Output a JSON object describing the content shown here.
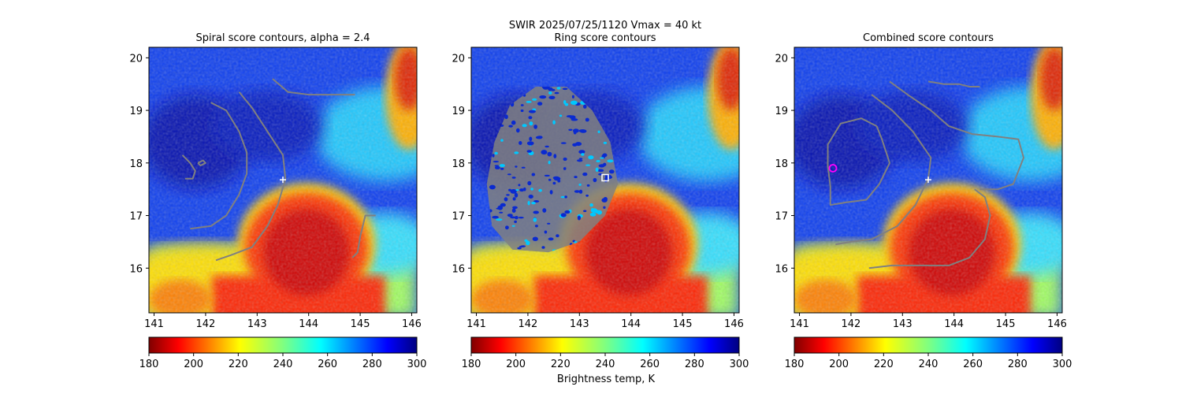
{
  "suptitle": "SWIR  2025/07/25/1120    Vmax = 40 kt",
  "colorbar_label": "Brightness temp, K",
  "colors": {
    "contour": "#808080",
    "marker_white": "#ffffff",
    "marker_magenta": "#ff00ff"
  },
  "chart_data": [
    {
      "type": "heatmap",
      "title": "Spiral score contours, alpha =  2.4",
      "xlim": [
        140.9,
        146.1
      ],
      "ylim": [
        15.15,
        20.2
      ],
      "xticks": [
        "141",
        "142",
        "143",
        "144",
        "145",
        "146"
      ],
      "yticks": [
        "16",
        "17",
        "18",
        "19",
        "20"
      ],
      "colorbar": {
        "cmap": "jet_r",
        "range": [
          180,
          300
        ],
        "ticks": [
          "180",
          "200",
          "220",
          "240",
          "260",
          "280",
          "300"
        ]
      },
      "markers": [
        {
          "symbol": "plus",
          "x": 143.5,
          "y": 17.68,
          "color": "#ffffff"
        }
      ],
      "contours": [
        [
          [
            141.6,
            17.7
          ],
          [
            141.75,
            17.7
          ],
          [
            141.8,
            17.85
          ],
          [
            141.7,
            18.0
          ],
          [
            141.55,
            18.15
          ]
        ],
        [
          [
            141.85,
            18.0
          ],
          [
            141.95,
            18.05
          ],
          [
            142.0,
            18.0
          ],
          [
            141.9,
            17.95
          ],
          [
            141.85,
            18.0
          ]
        ],
        [
          [
            142.1,
            19.15
          ],
          [
            142.4,
            19.0
          ],
          [
            142.65,
            18.6
          ],
          [
            142.8,
            18.2
          ],
          [
            142.8,
            17.8
          ],
          [
            142.65,
            17.4
          ],
          [
            142.4,
            17.0
          ],
          [
            142.1,
            16.8
          ],
          [
            141.7,
            16.75
          ]
        ],
        [
          [
            142.65,
            19.35
          ],
          [
            142.9,
            19.05
          ],
          [
            143.2,
            18.6
          ],
          [
            143.5,
            18.15
          ],
          [
            143.55,
            17.7
          ],
          [
            143.4,
            17.2
          ],
          [
            143.2,
            16.8
          ],
          [
            142.9,
            16.4
          ],
          [
            142.5,
            16.25
          ],
          [
            142.2,
            16.15
          ]
        ],
        [
          [
            143.3,
            19.6
          ],
          [
            143.6,
            19.35
          ],
          [
            144.0,
            19.3
          ],
          [
            144.3,
            19.3
          ],
          [
            144.65,
            19.3
          ],
          [
            144.9,
            19.3
          ]
        ],
        [
          [
            145.3,
            17.0
          ],
          [
            145.1,
            17.0
          ],
          [
            145.0,
            16.6
          ],
          [
            144.95,
            16.3
          ],
          [
            144.85,
            16.2
          ]
        ]
      ]
    },
    {
      "type": "heatmap",
      "title": "Ring score contours",
      "xlim": [
        140.9,
        146.1
      ],
      "ylim": [
        15.15,
        20.2
      ],
      "xticks": [
        "141",
        "142",
        "143",
        "144",
        "145",
        "146"
      ],
      "yticks": [
        "16",
        "17",
        "18",
        "19",
        "20"
      ],
      "colorbar": {
        "cmap": "jet_r",
        "range": [
          180,
          300
        ],
        "ticks": [
          "180",
          "200",
          "220",
          "240",
          "260",
          "280",
          "300"
        ]
      },
      "markers": [
        {
          "symbol": "square",
          "x": 143.5,
          "y": 17.72,
          "color": "#ffffff"
        }
      ],
      "contour_region": [
        [
          142.15,
          19.45
        ],
        [
          142.75,
          19.45
        ],
        [
          143.25,
          19.0
        ],
        [
          143.6,
          18.4
        ],
        [
          143.75,
          17.6
        ],
        [
          143.5,
          17.0
        ],
        [
          143.0,
          16.5
        ],
        [
          142.4,
          16.3
        ],
        [
          141.7,
          16.35
        ],
        [
          141.3,
          16.8
        ],
        [
          141.2,
          17.6
        ],
        [
          141.35,
          18.4
        ],
        [
          141.65,
          19.1
        ]
      ]
    },
    {
      "type": "heatmap",
      "title": "Combined score contours",
      "xlim": [
        140.9,
        146.1
      ],
      "ylim": [
        15.15,
        20.2
      ],
      "xticks": [
        "141",
        "142",
        "143",
        "144",
        "145",
        "146"
      ],
      "yticks": [
        "16",
        "17",
        "18",
        "19",
        "20"
      ],
      "colorbar": {
        "cmap": "jet_r",
        "range": [
          180,
          300
        ],
        "ticks": [
          "180",
          "200",
          "220",
          "240",
          "260",
          "280",
          "300"
        ]
      },
      "markers": [
        {
          "symbol": "plus",
          "x": 143.5,
          "y": 17.68,
          "color": "#ffffff"
        },
        {
          "symbol": "circle",
          "x": 141.65,
          "y": 17.9,
          "color": "#ff00ff"
        }
      ],
      "contours": [
        [
          [
            142.5,
            18.7
          ],
          [
            142.2,
            18.85
          ],
          [
            141.8,
            18.75
          ],
          [
            141.55,
            18.35
          ],
          [
            141.55,
            17.95
          ],
          [
            141.6,
            17.55
          ],
          [
            141.6,
            17.2
          ],
          [
            141.9,
            17.25
          ],
          [
            142.3,
            17.3
          ],
          [
            142.55,
            17.6
          ],
          [
            142.75,
            18.0
          ],
          [
            142.6,
            18.45
          ],
          [
            142.5,
            18.7
          ]
        ],
        [
          [
            142.4,
            19.3
          ],
          [
            142.8,
            19.0
          ],
          [
            143.2,
            18.6
          ],
          [
            143.55,
            18.1
          ],
          [
            143.5,
            17.7
          ],
          [
            143.25,
            17.2
          ],
          [
            142.9,
            16.8
          ],
          [
            142.4,
            16.55
          ],
          [
            142.0,
            16.5
          ],
          [
            141.7,
            16.45
          ]
        ],
        [
          [
            142.75,
            19.55
          ],
          [
            143.1,
            19.3
          ],
          [
            143.55,
            19.0
          ],
          [
            143.9,
            18.7
          ],
          [
            144.35,
            18.55
          ],
          [
            144.85,
            18.5
          ],
          [
            145.25,
            18.45
          ],
          [
            145.35,
            18.1
          ],
          [
            145.15,
            17.6
          ],
          [
            144.85,
            17.5
          ],
          [
            144.5,
            17.5
          ]
        ],
        [
          [
            143.5,
            19.55
          ],
          [
            143.8,
            19.5
          ],
          [
            144.1,
            19.5
          ],
          [
            144.3,
            19.45
          ],
          [
            144.5,
            19.45
          ]
        ],
        [
          [
            144.4,
            17.5
          ],
          [
            144.6,
            17.35
          ],
          [
            144.7,
            17.0
          ],
          [
            144.6,
            16.55
          ],
          [
            144.3,
            16.2
          ],
          [
            143.9,
            16.05
          ],
          [
            143.4,
            16.05
          ],
          [
            142.8,
            16.05
          ],
          [
            142.35,
            16.0
          ]
        ]
      ]
    }
  ]
}
